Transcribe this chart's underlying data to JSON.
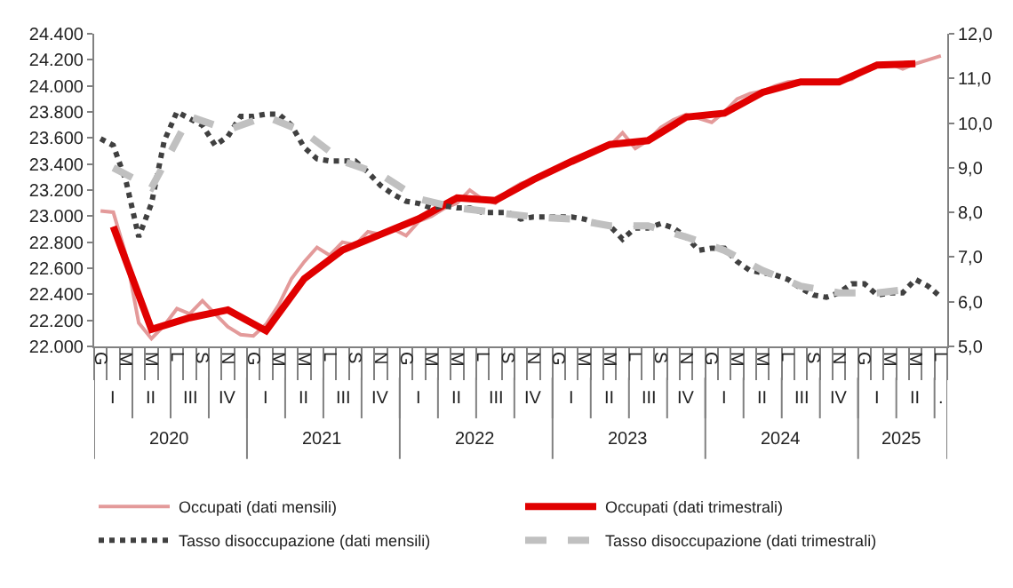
{
  "chart_data": {
    "type": "line",
    "categories": [
      "G",
      null,
      "M",
      null,
      "M",
      null,
      "L",
      null,
      "S",
      null,
      "N",
      null,
      "G",
      null,
      "M",
      null,
      "M",
      null,
      "L",
      null,
      "S",
      null,
      "N",
      null,
      "G",
      null,
      "M",
      null,
      "M",
      null,
      "L",
      null,
      "S",
      null,
      "N",
      null,
      "G",
      null,
      "M",
      null,
      "M",
      null,
      "L",
      null,
      "S",
      null,
      "N",
      null,
      "G",
      null,
      "M",
      null,
      "M",
      null,
      "L",
      null,
      "S",
      null,
      "N",
      null,
      "G",
      null,
      "M",
      null,
      "M",
      null,
      "L"
    ],
    "series": [
      {
        "name": "Occupati (dati mensili)",
        "color": "#e39a9a",
        "line_style": "solid",
        "values": [
          23040,
          23030,
          22700,
          22180,
          22060,
          22160,
          22290,
          22250,
          22350,
          22250,
          22150,
          22090,
          22080,
          22170,
          22320,
          22520,
          22650,
          22760,
          22700,
          22800,
          22780,
          22880,
          22860,
          22900,
          22850,
          22960,
          23000,
          23060,
          23100,
          23200,
          23130,
          23100,
          23190,
          23250,
          23280,
          23330,
          23380,
          23420,
          23470,
          23520,
          23540,
          23640,
          23520,
          23580,
          23680,
          23740,
          23780,
          23750,
          23720,
          23800,
          23900,
          23940,
          23960,
          24000,
          24030,
          24040,
          24020,
          24030,
          24040,
          24050,
          24110,
          24160,
          24170,
          24130,
          24170,
          24200,
          24230
        ]
      },
      {
        "name": "Occupati (dati trimestrali)",
        "color": "#e00000",
        "line_style": "solid",
        "values": [
          null,
          22920,
          null,
          null,
          22130,
          null,
          null,
          22220,
          null,
          null,
          22280,
          null,
          null,
          22120,
          null,
          null,
          22520,
          null,
          null,
          22740,
          null,
          null,
          22860,
          null,
          null,
          22980,
          null,
          null,
          23140,
          null,
          null,
          23120,
          null,
          null,
          23280,
          null,
          null,
          23420,
          null,
          null,
          23550,
          null,
          null,
          23580,
          null,
          null,
          23760,
          null,
          null,
          23790,
          null,
          null,
          23950,
          null,
          null,
          24030,
          null,
          null,
          24030,
          null,
          null,
          24160,
          null,
          null,
          24170,
          null,
          null
        ]
      },
      {
        "name": "Tasso disoccupazione (dati mensili)",
        "color": "#404040",
        "line_style": "dotted",
        "axis": "y2",
        "values": [
          9.65,
          9.5,
          8.7,
          7.45,
          8.2,
          9.6,
          10.25,
          10.1,
          9.95,
          9.5,
          9.7,
          10.15,
          10.15,
          10.2,
          10.2,
          9.95,
          9.45,
          9.2,
          9.15,
          9.15,
          9.15,
          8.9,
          8.6,
          8.4,
          8.25,
          8.2,
          8.1,
          8.15,
          8.1,
          8.1,
          8.0,
          8.0,
          8.0,
          7.85,
          7.9,
          7.9,
          7.9,
          7.9,
          7.85,
          7.75,
          7.7,
          7.4,
          7.65,
          7.65,
          7.75,
          7.65,
          7.45,
          7.15,
          7.2,
          7.2,
          6.9,
          6.7,
          6.65,
          6.6,
          6.5,
          6.3,
          6.15,
          6.1,
          6.2,
          6.4,
          6.4,
          6.15,
          6.2,
          6.2,
          6.5,
          6.35,
          6.1
        ]
      },
      {
        "name": "Tasso disoccupazione (dati trimestrali)",
        "color": "#c0c0c0",
        "line_style": "dashed",
        "axis": "y2",
        "values": [
          null,
          9.0,
          null,
          null,
          8.55,
          null,
          null,
          10.15,
          null,
          null,
          9.85,
          null,
          null,
          10.15,
          null,
          null,
          9.8,
          null,
          null,
          9.15,
          null,
          null,
          8.85,
          null,
          null,
          8.3,
          null,
          null,
          8.1,
          null,
          null,
          8.0,
          null,
          null,
          7.9,
          null,
          null,
          7.85,
          null,
          null,
          7.7,
          null,
          null,
          7.7,
          null,
          null,
          7.45,
          null,
          null,
          7.15,
          null,
          null,
          6.7,
          null,
          null,
          6.35,
          null,
          null,
          6.2,
          null,
          null,
          6.2,
          null,
          null,
          6.3,
          null,
          null
        ]
      }
    ],
    "ylim": [
      22000,
      24400
    ],
    "yticks": [
      {
        "value": 22000,
        "label": "22.000"
      },
      {
        "value": 22200,
        "label": "22.200"
      },
      {
        "value": 22400,
        "label": "22.400"
      },
      {
        "value": 22600,
        "label": "22.600"
      },
      {
        "value": 22800,
        "label": "22.800"
      },
      {
        "value": 23000,
        "label": "23.000"
      },
      {
        "value": 23200,
        "label": "23.200"
      },
      {
        "value": 23400,
        "label": "23.400"
      },
      {
        "value": 23600,
        "label": "23.600"
      },
      {
        "value": 23800,
        "label": "23.800"
      },
      {
        "value": 24000,
        "label": "24.000"
      },
      {
        "value": 24200,
        "label": "24.200"
      },
      {
        "value": 24400,
        "label": "24.400"
      }
    ],
    "y2lim": [
      5,
      12
    ],
    "y2ticks": [
      {
        "value": 5,
        "label": "5,0"
      },
      {
        "value": 6,
        "label": "6,0"
      },
      {
        "value": 7,
        "label": "7,0"
      },
      {
        "value": 8,
        "label": "8,0"
      },
      {
        "value": 9,
        "label": "9,0"
      },
      {
        "value": 10,
        "label": "10,0"
      },
      {
        "value": 11,
        "label": "11,0"
      },
      {
        "value": 12,
        "label": "12,0"
      }
    ],
    "annotations": [
      "I",
      "II",
      "III",
      "IV",
      "I",
      "II",
      "III",
      "IV",
      "I",
      "II",
      "III",
      "IV",
      "I",
      "II",
      "III",
      "IV",
      "I",
      "II",
      "III",
      "IV",
      "I",
      "II",
      ".",
      "2020",
      "2021",
      "2022",
      "2023",
      "2024",
      "2025"
    ],
    "grid": false,
    "legend": "bottom",
    "marker": "none"
  }
}
